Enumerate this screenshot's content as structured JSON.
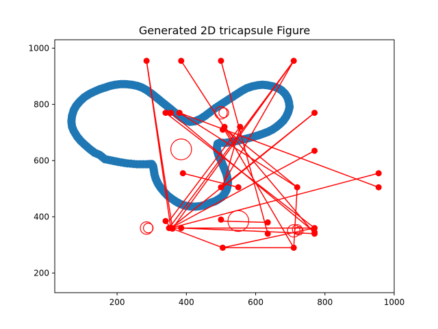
{
  "chart_data": {
    "type": "scatter",
    "title": "Generated 2D tricapsule Figure",
    "xlabel": "",
    "ylabel": "",
    "xlim": [
      20,
      1000
    ],
    "ylim": [
      130,
      1030
    ],
    "xticks": [
      200,
      400,
      600,
      800,
      1000
    ],
    "yticks": [
      200,
      400,
      600,
      800,
      1000
    ],
    "grid": false,
    "colors": {
      "outline": "#1f77b4",
      "overlay": "#ff0000"
    },
    "outline_points": [
      [
        258,
        587
      ],
      [
        230,
        590
      ],
      [
        205,
        595
      ],
      [
        185,
        600
      ],
      [
        165,
        605
      ],
      [
        150,
        620
      ],
      [
        135,
        628
      ],
      [
        122,
        640
      ],
      [
        108,
        655
      ],
      [
        95,
        670
      ],
      [
        85,
        685
      ],
      [
        75,
        705
      ],
      [
        70,
        720
      ],
      [
        68,
        740
      ],
      [
        70,
        760
      ],
      [
        75,
        780
      ],
      [
        82,
        795
      ],
      [
        92,
        810
      ],
      [
        105,
        825
      ],
      [
        120,
        837
      ],
      [
        135,
        846
      ],
      [
        150,
        854
      ],
      [
        165,
        860
      ],
      [
        180,
        866
      ],
      [
        195,
        870
      ],
      [
        210,
        872
      ],
      [
        225,
        872
      ],
      [
        242,
        870
      ],
      [
        258,
        866
      ],
      [
        272,
        860
      ],
      [
        286,
        850
      ],
      [
        300,
        838
      ],
      [
        312,
        826
      ],
      [
        324,
        814
      ],
      [
        336,
        802
      ],
      [
        348,
        790
      ],
      [
        360,
        778
      ],
      [
        372,
        766
      ],
      [
        384,
        754
      ],
      [
        396,
        744
      ],
      [
        410,
        738
      ],
      [
        425,
        740
      ],
      [
        440,
        748
      ],
      [
        455,
        760
      ],
      [
        470,
        774
      ],
      [
        485,
        788
      ],
      [
        500,
        800
      ],
      [
        515,
        812
      ],
      [
        530,
        824
      ],
      [
        545,
        836
      ],
      [
        560,
        848
      ],
      [
        575,
        858
      ],
      [
        590,
        864
      ],
      [
        605,
        868
      ],
      [
        620,
        870
      ],
      [
        635,
        868
      ],
      [
        650,
        864
      ],
      [
        665,
        858
      ],
      [
        675,
        850
      ],
      [
        685,
        838
      ],
      [
        692,
        824
      ],
      [
        696,
        808
      ],
      [
        698,
        790
      ],
      [
        694,
        772
      ],
      [
        688,
        756
      ],
      [
        680,
        742
      ],
      [
        670,
        730
      ],
      [
        660,
        720
      ],
      [
        648,
        710
      ],
      [
        635,
        702
      ],
      [
        622,
        696
      ],
      [
        608,
        690
      ],
      [
        594,
        685
      ],
      [
        580,
        680
      ],
      [
        566,
        676
      ],
      [
        552,
        672
      ],
      [
        538,
        668
      ],
      [
        524,
        665
      ],
      [
        510,
        663
      ],
      [
        497,
        664
      ],
      [
        490,
        660
      ],
      [
        488,
        645
      ],
      [
        490,
        630
      ],
      [
        494,
        615
      ],
      [
        500,
        600
      ],
      [
        505,
        585
      ],
      [
        510,
        570
      ],
      [
        515,
        555
      ],
      [
        518,
        540
      ],
      [
        520,
        525
      ],
      [
        519,
        510
      ],
      [
        516,
        495
      ],
      [
        510,
        482
      ],
      [
        502,
        470
      ],
      [
        492,
        462
      ],
      [
        482,
        455
      ],
      [
        470,
        450
      ],
      [
        455,
        442
      ],
      [
        440,
        438
      ],
      [
        425,
        436
      ],
      [
        410,
        437
      ],
      [
        395,
        440
      ],
      [
        382,
        446
      ],
      [
        370,
        454
      ],
      [
        358,
        464
      ],
      [
        346,
        475
      ],
      [
        336,
        488
      ],
      [
        326,
        503
      ],
      [
        318,
        518
      ],
      [
        312,
        534
      ],
      [
        308,
        550
      ],
      [
        306,
        566
      ],
      [
        304,
        580
      ],
      [
        300,
        588
      ],
      [
        285,
        587
      ]
    ],
    "overlay_segments": [
      [
        [
          285,
          955
        ],
        [
          355,
          360
        ]
      ],
      [
        [
          285,
          955
        ],
        [
          360,
          358
        ]
      ],
      [
        [
          385,
          955
        ],
        [
          540,
          660
        ]
      ],
      [
        [
          500,
          955
        ],
        [
          635,
          340
        ]
      ],
      [
        [
          710,
          955
        ],
        [
          350,
          360
        ]
      ],
      [
        [
          710,
          955
        ],
        [
          355,
          350
        ]
      ],
      [
        [
          710,
          955
        ],
        [
          500,
          505
        ]
      ],
      [
        [
          340,
          770
        ],
        [
          770,
          360
        ]
      ],
      [
        [
          355,
          770
        ],
        [
          770,
          345
        ]
      ],
      [
        [
          380,
          770
        ],
        [
          955,
          505
        ]
      ],
      [
        [
          510,
          720
        ],
        [
          770,
          340
        ]
      ],
      [
        [
          555,
          720
        ],
        [
          350,
          385
        ]
      ],
      [
        [
          555,
          720
        ],
        [
          505,
          505
        ]
      ],
      [
        [
          770,
          770
        ],
        [
          355,
          360
        ]
      ],
      [
        [
          770,
          770
        ],
        [
          505,
          505
        ]
      ],
      [
        [
          770,
          635
        ],
        [
          355,
          360
        ]
      ],
      [
        [
          955,
          555
        ],
        [
          355,
          360
        ]
      ],
      [
        [
          390,
          555
        ],
        [
          550,
          505
        ]
      ],
      [
        [
          720,
          505
        ],
        [
          505,
          720
        ]
      ],
      [
        [
          720,
          505
        ],
        [
          380,
          770
        ]
      ],
      [
        [
          340,
          385
        ],
        [
          355,
          360
        ]
      ],
      [
        [
          500,
          385
        ],
        [
          635,
          380
        ]
      ],
      [
        [
          355,
          360
        ],
        [
          770,
          360
        ]
      ],
      [
        [
          355,
          360
        ],
        [
          505,
          290
        ]
      ],
      [
        [
          385,
          360
        ],
        [
          770,
          340
        ]
      ],
      [
        [
          505,
          290
        ],
        [
          770,
          360
        ]
      ],
      [
        [
          505,
          290
        ],
        [
          710,
          290
        ]
      ],
      [
        [
          710,
          290
        ],
        [
          505,
          720
        ]
      ],
      [
        [
          710,
          290
        ],
        [
          720,
          505
        ]
      ],
      [
        [
          500,
          955
        ],
        [
          500,
          955
        ]
      ]
    ],
    "overlay_points": [
      [
        285,
        955
      ],
      [
        385,
        955
      ],
      [
        500,
        955
      ],
      [
        710,
        955
      ],
      [
        340,
        770
      ],
      [
        355,
        770
      ],
      [
        380,
        770
      ],
      [
        770,
        770
      ],
      [
        510,
        720
      ],
      [
        555,
        720
      ],
      [
        505,
        710
      ],
      [
        770,
        635
      ],
      [
        955,
        555
      ],
      [
        390,
        555
      ],
      [
        500,
        505
      ],
      [
        550,
        505
      ],
      [
        720,
        505
      ],
      [
        955,
        505
      ],
      [
        340,
        385
      ],
      [
        500,
        390
      ],
      [
        635,
        380
      ],
      [
        355,
        360
      ],
      [
        360,
        358
      ],
      [
        350,
        360
      ],
      [
        385,
        360
      ],
      [
        770,
        360
      ],
      [
        770,
        345
      ],
      [
        770,
        340
      ],
      [
        635,
        340
      ],
      [
        505,
        290
      ],
      [
        710,
        290
      ]
    ],
    "overlay_circles": [
      [
        385,
        640,
        30
      ],
      [
        500,
        770,
        18
      ],
      [
        508,
        770,
        14
      ],
      [
        285,
        360,
        18
      ],
      [
        290,
        360,
        14
      ],
      [
        550,
        385,
        30
      ],
      [
        710,
        350,
        18
      ],
      [
        720,
        355,
        14
      ],
      [
        725,
        350,
        12
      ]
    ]
  }
}
